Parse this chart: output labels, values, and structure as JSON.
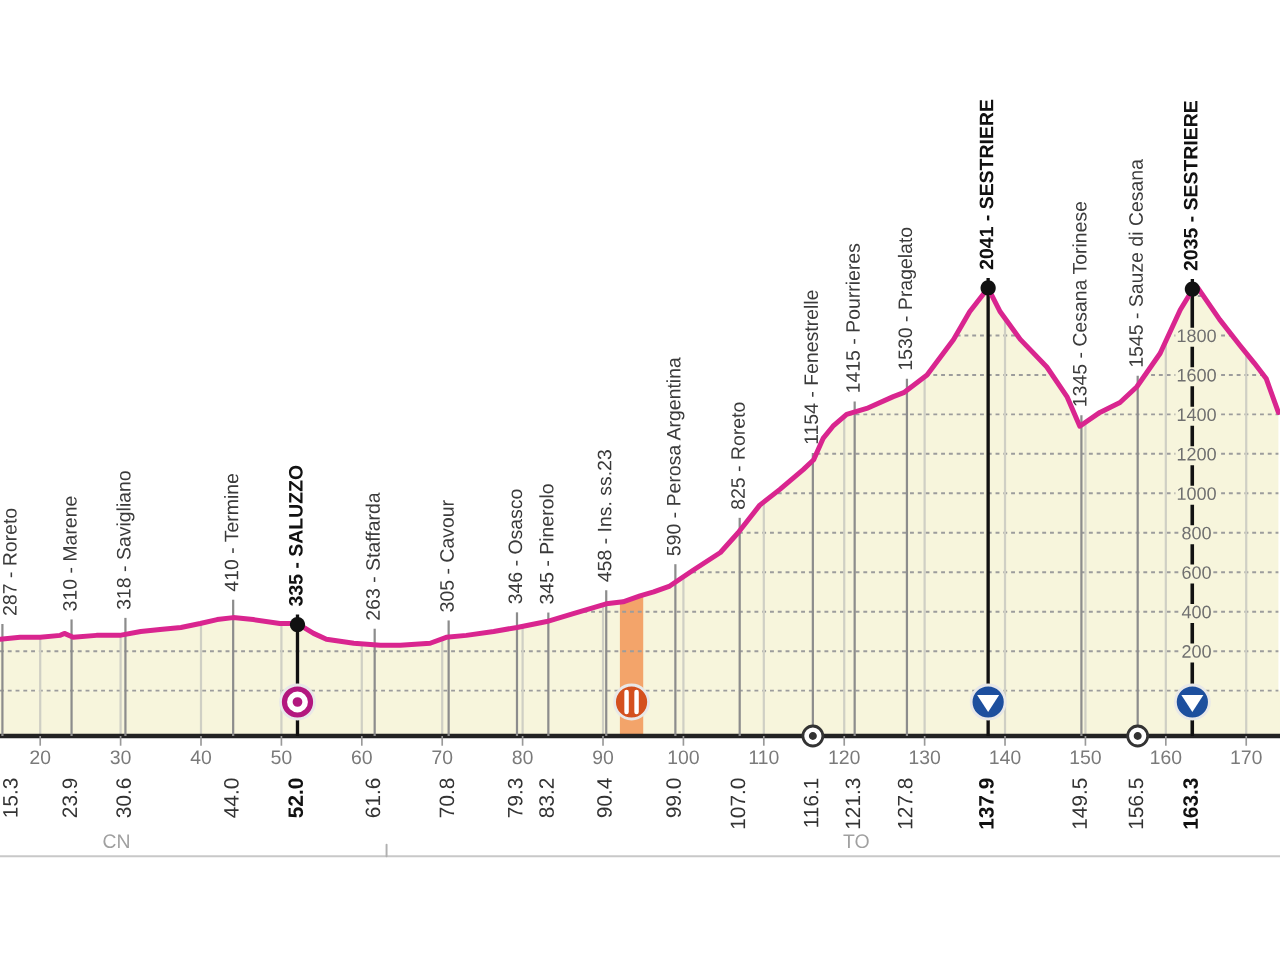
{
  "chart_data": {
    "type": "area",
    "series": [
      {
        "color": "#f7f5dc",
        "x": [
          15.0,
          17.5,
          20.0,
          22.5,
          23.0,
          24.1,
          27.0,
          29.9,
          32.5,
          34.9,
          37.5,
          39.9,
          42.0,
          44.0,
          46.5,
          49.8,
          52.0,
          54.0,
          55.6,
          59.0,
          62.3,
          64.8,
          68.5,
          70.5,
          73.0,
          76.4,
          79.3,
          83.0,
          86.3,
          90.4,
          92.5,
          94.6,
          96.3,
          98.3,
          101.2,
          104.6,
          106.8,
          109.5,
          112.0,
          114.9,
          116.2,
          117.4,
          118.6,
          120.3,
          122.8,
          126.1,
          127.4,
          130.3,
          133.6,
          135.6,
          137.9,
          139.4,
          141.9,
          145.2,
          147.7,
          149.3,
          151.8,
          154.3,
          156.4,
          159.3,
          161.8,
          163.3,
          164.0,
          166.7,
          169.2,
          171.0,
          172.5,
          174.0
        ],
        "values": [
          260,
          270,
          270,
          280,
          290,
          270,
          280,
          280,
          300,
          310,
          320,
          340,
          360,
          370,
          360,
          340,
          340,
          290,
          260,
          240,
          230,
          230,
          240,
          270,
          280,
          300,
          320,
          350,
          390,
          440,
          450,
          480,
          500,
          530,
          610,
          700,
          800,
          940,
          1020,
          1120,
          1170,
          1280,
          1340,
          1400,
          1430,
          1490,
          1510,
          1600,
          1780,
          1920,
          2040,
          1920,
          1780,
          1640,
          1490,
          1340,
          1410,
          1460,
          1540,
          1710,
          1930,
          2030,
          2040,
          1880,
          1750,
          1660,
          1580,
          1410
        ]
      },
      {
        "type": "scatter",
        "color": "#111111",
        "marker": "circle",
        "x": [
          52.0,
          137.9,
          163.3
        ],
        "values": [
          335,
          2041,
          2035
        ]
      }
    ],
    "xlim": [
      15.0,
      174.2
    ],
    "xticks": [
      20,
      30,
      40,
      50,
      60,
      70,
      80,
      90,
      100,
      110,
      120,
      130,
      140,
      150,
      160,
      170
    ],
    "ylim": [
      -230,
      3500
    ],
    "yticks": [
      {
        "value": 0,
        "label": null
      },
      200,
      400,
      600,
      800,
      1000,
      1200,
      1400,
      1600,
      1800,
      {
        "value": 2000,
        "label": null
      }
    ],
    "x2lim": [
      15.0,
      174.2
    ],
    "x2ticks": [
      {
        "value": 15.3,
        "label": "15.3"
      },
      {
        "value": 23.9,
        "label": "23.9"
      },
      {
        "value": 30.6,
        "label": "30.6"
      },
      {
        "value": 44.0,
        "label": "44.0"
      },
      {
        "value": 52.0,
        "label": "52.0"
      },
      {
        "value": 61.6,
        "label": "61.6"
      },
      {
        "value": 70.8,
        "label": "70.8"
      },
      {
        "value": 79.3,
        "label": "79.3"
      },
      {
        "value": 83.2,
        "label": "83.2"
      },
      {
        "value": 90.4,
        "label": "90.4"
      },
      {
        "value": 99.0,
        "label": "99.0"
      },
      {
        "value": 107.0,
        "label": "107.0"
      },
      {
        "value": 116.1,
        "label": "116.1"
      },
      {
        "value": 121.3,
        "label": "121.3"
      },
      {
        "value": 127.8,
        "label": "127.8"
      },
      {
        "value": 137.9,
        "label": "137.9"
      },
      {
        "value": 149.5,
        "label": "149.5"
      },
      {
        "value": 156.5,
        "label": "156.5"
      },
      {
        "value": 163.3,
        "label": "163.3"
      }
    ],
    "grid": true,
    "bands": [
      {
        "axis": "y",
        "from": -230,
        "to": 0,
        "color": "#f7f5dc"
      },
      {
        "axis": "x",
        "from": 92.1,
        "to": 95.0,
        "color": "#f3a46a"
      }
    ],
    "annotations": [
      {
        "text": "287 - Roreto",
        "x": 15.3,
        "y": 287
      },
      {
        "text": "310 - Marene",
        "x": 23.9,
        "y": 310
      },
      {
        "text": "318 - Savigliano",
        "x": 30.6,
        "y": 318
      },
      {
        "text": "410 - Termine",
        "x": 44.0,
        "y": 410
      },
      {
        "text": "335 - SALUZZO",
        "x": 52.0,
        "y": 335
      },
      {
        "text": "263 - Staffarda",
        "x": 61.6,
        "y": 263
      },
      {
        "text": "305 - Cavour",
        "x": 70.8,
        "y": 305
      },
      {
        "text": "346 - Osasco",
        "x": 79.3,
        "y": 346
      },
      {
        "text": "345 - Pinerolo",
        "x": 83.2,
        "y": 345
      },
      {
        "text": "458 - Ins. ss.23",
        "x": 90.4,
        "y": 458
      },
      {
        "text": "590 - Perosa Argentina",
        "x": 99.0,
        "y": 590
      },
      {
        "text": "825 - Roreto",
        "x": 107.0,
        "y": 825
      },
      {
        "text": "1154 - Fenestrelle",
        "x": 116.1,
        "y": 1154
      },
      {
        "text": "1415 - Pourrieres",
        "x": 121.3,
        "y": 1415
      },
      {
        "text": "1530 - Pragelato",
        "x": 127.8,
        "y": 1530
      },
      {
        "text": "2041 - SESTRIERE",
        "x": 137.9,
        "y": 2041
      },
      {
        "text": "1345 - Cesana Torinese",
        "x": 149.5,
        "y": 1345
      },
      {
        "text": "1545 - Sauze di Cesana",
        "x": 156.5,
        "y": 1545
      },
      {
        "text": "2035 - SESTRIERE",
        "x": 163.3,
        "y": 2035
      },
      "CN",
      "TO"
    ]
  }
}
